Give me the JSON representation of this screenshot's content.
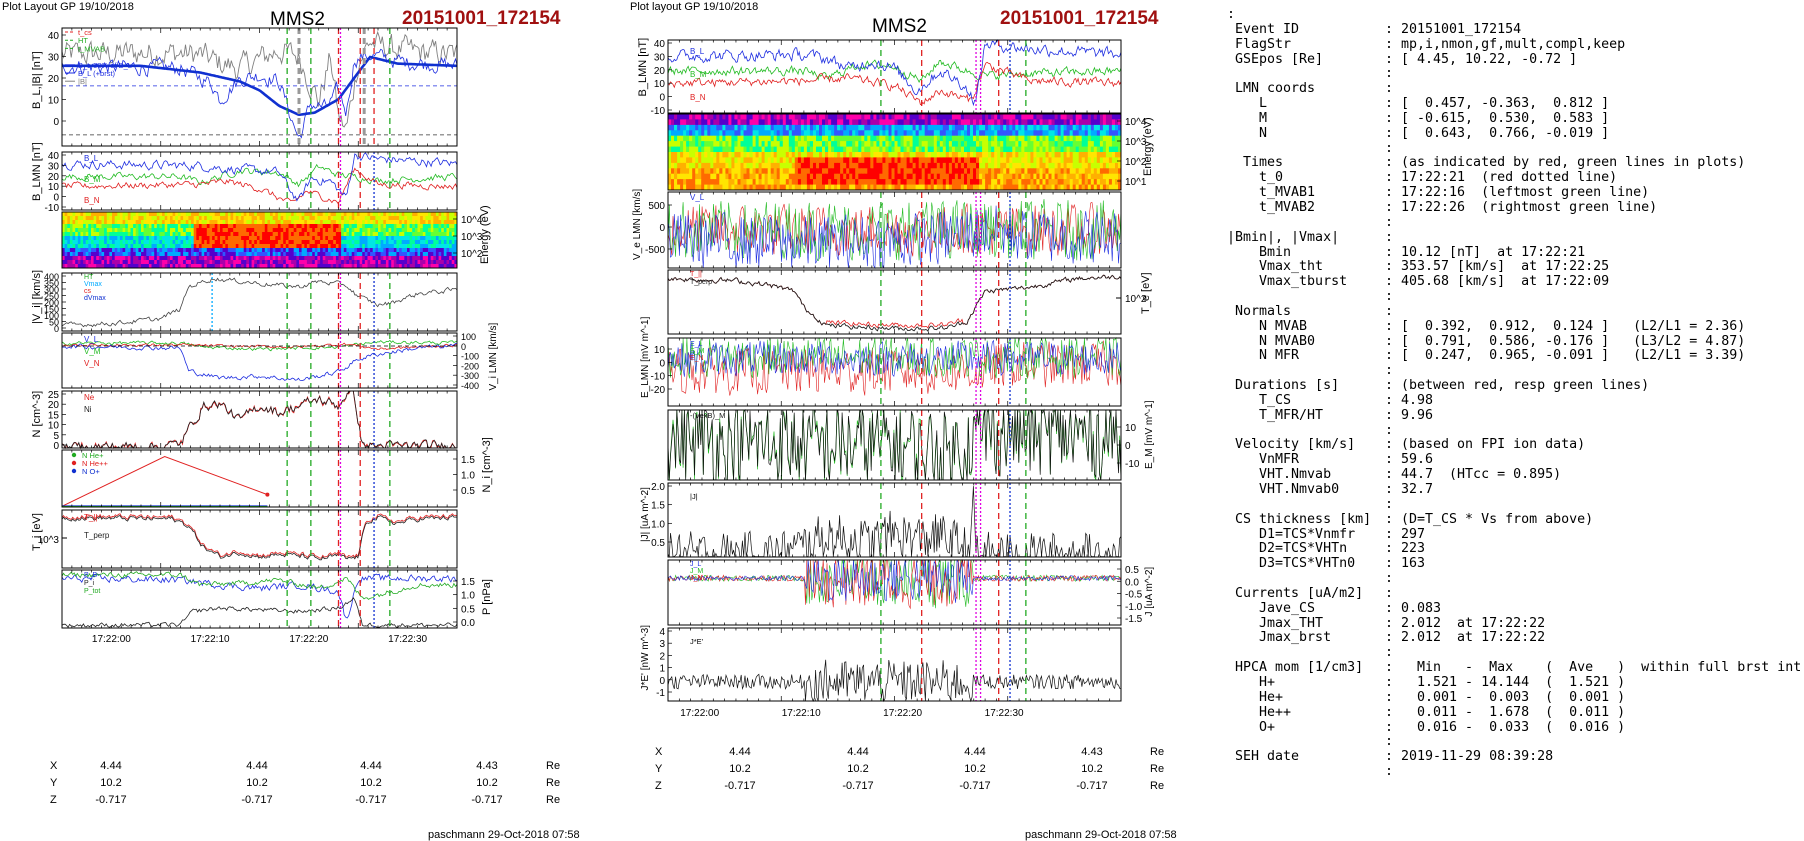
{
  "left_figure": {
    "header": "Plot Layout GP 19/10/2018",
    "spacecraft": "MMS2",
    "event": "20151001_172154",
    "footer": "paschmann 29-Oct-2018 07:58",
    "time_ticks": [
      "17:22:00",
      "17:22:10",
      "17:22:20",
      "17:22:30"
    ],
    "coords": {
      "rows": [
        {
          "label": "X",
          "values": [
            "4.44",
            "4.44",
            "4.44",
            "4.43"
          ],
          "unit": "Re"
        },
        {
          "label": "Y",
          "values": [
            "10.2",
            "10.2",
            "10.2",
            "10.2"
          ],
          "unit": "Re"
        },
        {
          "label": "Z",
          "values": [
            "-0.717",
            "-0.717",
            "-0.717",
            "-0.717"
          ],
          "unit": "Re"
        }
      ]
    }
  },
  "right_figure": {
    "header": "Plot layout GP 19/10/2018",
    "spacecraft": "MMS2",
    "event": "20151001_172154",
    "footer": "paschmann 29-Oct-2018 07:58",
    "time_ticks": [
      "17:22:00",
      "17:22:10",
      "17:22:20",
      "17:22:30"
    ],
    "coords": {
      "rows": [
        {
          "label": "X",
          "values": [
            "4.44",
            "4.44",
            "4.44",
            "4.43"
          ],
          "unit": "Re"
        },
        {
          "label": "Y",
          "values": [
            "10.2",
            "10.2",
            "10.2",
            "10.2"
          ],
          "unit": "Re"
        },
        {
          "label": "Z",
          "values": [
            "-0.717",
            "-0.717",
            "-0.717",
            "-0.717"
          ],
          "unit": "Re"
        }
      ]
    }
  },
  "info": {
    "lines": [
      {
        "k": ":",
        "v": ""
      },
      {
        "k": " Event ID",
        "v": ": 20151001_172154"
      },
      {
        "k": " FlagStr",
        "v": ": mp,i,nmon,gf,mult,compl,keep"
      },
      {
        "k": " GSEpos [Re]",
        "v": ": [ 4.45, 10.22, -0.72 ]"
      },
      {
        "k": "",
        "v": ":"
      },
      {
        "k": " LMN coords",
        "v": ":"
      },
      {
        "k": "    L",
        "v": ": [  0.457, -0.363,  0.812 ]"
      },
      {
        "k": "    M",
        "v": ": [ -0.615,  0.530,  0.583 ]"
      },
      {
        "k": "    N",
        "v": ": [  0.643,  0.766, -0.019 ]"
      },
      {
        "k": "",
        "v": ":"
      },
      {
        "k": "  Times",
        "v": ": (as indicated by red, green lines in plots)"
      },
      {
        "k": "    t_0",
        "v": ": 17:22:21  (red dotted line)"
      },
      {
        "k": "    t_MVAB1",
        "v": ": 17:22:16  (leftmost green line)"
      },
      {
        "k": "    t_MVAB2",
        "v": ": 17:22:26  (rightmost green line)"
      },
      {
        "k": "",
        "v": ":"
      },
      {
        "k": "|Bmin|, |Vmax|",
        "v": ":"
      },
      {
        "k": "    Bmin",
        "v": ": 10.12 [nT]  at 17:22:21"
      },
      {
        "k": "    Vmax_tht",
        "v": ": 353.57 [km/s]  at 17:22:25"
      },
      {
        "k": "    Vmax_tburst",
        "v": ": 405.68 [km/s]  at 17:22:09"
      },
      {
        "k": "",
        "v": ":"
      },
      {
        "k": " Normals",
        "v": ":"
      },
      {
        "k": "    N MVAB",
        "v": ": [  0.392,  0.912,  0.124 ]   (L2/L1 = 2.36)"
      },
      {
        "k": "    N MVAB0",
        "v": ": [  0.791,  0.586, -0.176 ]   (L3/L2 = 4.87)"
      },
      {
        "k": "    N MFR",
        "v": ": [  0.247,  0.965, -0.091 ]   (L2/L1 = 3.39)"
      },
      {
        "k": "",
        "v": ":"
      },
      {
        "k": " Durations [s]",
        "v": ": (between red, resp green lines)"
      },
      {
        "k": "    T_CS",
        "v": ": 4.98"
      },
      {
        "k": "    T_MFR/HT",
        "v": ": 9.96"
      },
      {
        "k": "",
        "v": ":"
      },
      {
        "k": " Velocity [km/s]",
        "v": ": (based on FPI ion data)"
      },
      {
        "k": "    VnMFR",
        "v": ": 59.6"
      },
      {
        "k": "    VHT.Nmvab",
        "v": ": 44.7  (HTcc = 0.895)"
      },
      {
        "k": "    VHT.Nmvab0",
        "v": ": 32.7"
      },
      {
        "k": "",
        "v": ":"
      },
      {
        "k": " CS thickness [km]",
        "v": ": (D=T_CS * Vs from above)"
      },
      {
        "k": "    D1=TCS*Vnmfr",
        "v": ": 297"
      },
      {
        "k": "    D2=TCS*VHTn",
        "v": ": 223"
      },
      {
        "k": "    D3=TCS*VHTn0",
        "v": ": 163"
      },
      {
        "k": "",
        "v": ":"
      },
      {
        "k": " Currents [uA/m2]",
        "v": ":"
      },
      {
        "k": "    Jave_CS",
        "v": ": 0.083"
      },
      {
        "k": "    Jmax_THT",
        "v": ": 2.012  at 17:22:22"
      },
      {
        "k": "    Jmax_brst",
        "v": ": 2.012  at 17:22:22"
      },
      {
        "k": "",
        "v": ":"
      },
      {
        "k": " HPCA mom [1/cm3]",
        "v": ":   Min   -  Max    (  Ave   )  within full brst int"
      },
      {
        "k": "    H+",
        "v": ":   1.521 - 14.144  (  1.521 )"
      },
      {
        "k": "    He+",
        "v": ":   0.001 -  0.003  (  0.001 )"
      },
      {
        "k": "    He++",
        "v": ":   0.011 -  1.678  (  0.011 )"
      },
      {
        "k": "    O+",
        "v": ":   0.016 -  0.033  (  0.016 )"
      },
      {
        "k": "",
        "v": ":"
      },
      {
        "k": " SEH date",
        "v": ": 2019-11-29 08:39:28"
      },
      {
        "k": "",
        "v": ":"
      }
    ]
  },
  "colors": {
    "event_red": "#a01010",
    "bL_thick": "#1030d0",
    "L": "#1e2ee0",
    "M": "#22bb22",
    "N": "#e02020",
    "black": "#000000",
    "magenta": "#e000e0"
  },
  "chart_data": [
    {
      "type": "line",
      "figure": "left",
      "panels": [
        {
          "id": "B_L_and_B",
          "ylabel": "B_L,|B| [nT]",
          "yticks": [
            "40",
            "30",
            "20",
            "10",
            "0"
          ],
          "legend": [
            "t_cs",
            "HT",
            "t_MVAB",
            "",
            "B_L 50% of B_L",
            "B_L (+brst)",
            "|B|"
          ]
        },
        {
          "id": "B_LMN",
          "ylabel": "B_LMN [nT]",
          "yticks": [
            "40",
            "30",
            "20",
            "10",
            "0",
            "-10"
          ],
          "legend": [
            "B_L",
            "B_M",
            "B_N"
          ]
        },
        {
          "id": "ion_energy_spectrogram",
          "ylabel": "Energy (eV)",
          "yticks": [
            "10^4",
            "10^3",
            "10^2"
          ]
        },
        {
          "id": "Vi_mag",
          "ylabel": "|V_i| [km/s]",
          "yticks": [
            "400",
            "350",
            "300",
            "250",
            "200",
            "150",
            "100",
            "50",
            "0"
          ],
          "legend": [
            "HT",
            "Vmax",
            "cs",
            "dVmax"
          ]
        },
        {
          "id": "Vi_LMN",
          "ylabel": "V_i LMN [km/s]",
          "yticks": [
            "100",
            "0",
            "-100",
            "-200",
            "-300",
            "-400"
          ],
          "legend": [
            "V_L",
            "V_M",
            "V_N"
          ]
        },
        {
          "id": "N",
          "ylabel": "N [cm^-3]",
          "yticks": [
            "25",
            "20",
            "15",
            "10",
            "5",
            "0"
          ],
          "legend": [
            "Ne",
            "Ni"
          ]
        },
        {
          "id": "Ni_hpca",
          "ylabel": "N_i [cm^-3]",
          "yticks": [
            "1.5",
            "1.0",
            "0.5"
          ],
          "legend": [
            "N He+",
            "N He++",
            "N O+"
          ]
        },
        {
          "id": "Ti",
          "ylabel": "T_i [eV]",
          "yticks": [
            "10^3"
          ],
          "legend": [
            "T_||",
            "T_perp"
          ]
        },
        {
          "id": "P",
          "ylabel": "P [nPa]",
          "yticks": [
            "1.5",
            "1.0",
            "0.5",
            "0.0"
          ],
          "legend": [
            "P_B",
            "P_i",
            "P_tot"
          ]
        }
      ]
    },
    {
      "type": "line",
      "figure": "right",
      "panels": [
        {
          "id": "B_LMN",
          "ylabel": "B_LMN [nT]",
          "yticks": [
            "40",
            "30",
            "20",
            "10",
            "0",
            "-10"
          ],
          "legend": [
            "B_L",
            "B_M",
            "B_N"
          ]
        },
        {
          "id": "electron_energy_spectrogram",
          "ylabel": "Energy (eV)",
          "yticks": [
            "10^4",
            "10^3",
            "10^2",
            "10^1"
          ]
        },
        {
          "id": "Ve_LMN",
          "ylabel": "V_e LMN [km/s]",
          "yticks": [
            "500",
            "0",
            "-500"
          ],
          "legend": [
            "V_L"
          ]
        },
        {
          "id": "Te",
          "ylabel": "T_e [eV]",
          "yticks": [
            "10^2"
          ],
          "legend": [
            "T_||",
            "T_perp"
          ]
        },
        {
          "id": "E_LMN",
          "ylabel": "E_LMN [mV m^-1]",
          "yticks": [
            "10",
            "0",
            "-10",
            "-20"
          ],
          "legend": [
            "E_L",
            "E_M",
            "E_N"
          ]
        },
        {
          "id": "VexB_M",
          "ylabel": "E_M [mV m^-1]",
          "yticks": [
            "10",
            "0",
            "-10"
          ],
          "legend": [
            "-(VexB)_M"
          ]
        },
        {
          "id": "J_mag",
          "ylabel": "|J| [uA m^-2]",
          "yticks": [
            "2.0",
            "1.5",
            "1.0",
            "0.5"
          ],
          "legend": [
            "|J|"
          ]
        },
        {
          "id": "J_LMN",
          "ylabel": "J [uA m^-2]",
          "yticks": [
            "0.5",
            "0.0",
            "-0.5",
            "-1.0",
            "-1.5"
          ],
          "legend": [
            "J_L",
            "J_M",
            "J_N"
          ]
        },
        {
          "id": "JdotE",
          "ylabel": "J*E' [nW m^-3]",
          "yticks": [
            "4",
            "3",
            "2",
            "1",
            "0",
            "-1"
          ],
          "legend": [
            "J*E'"
          ]
        }
      ]
    }
  ]
}
